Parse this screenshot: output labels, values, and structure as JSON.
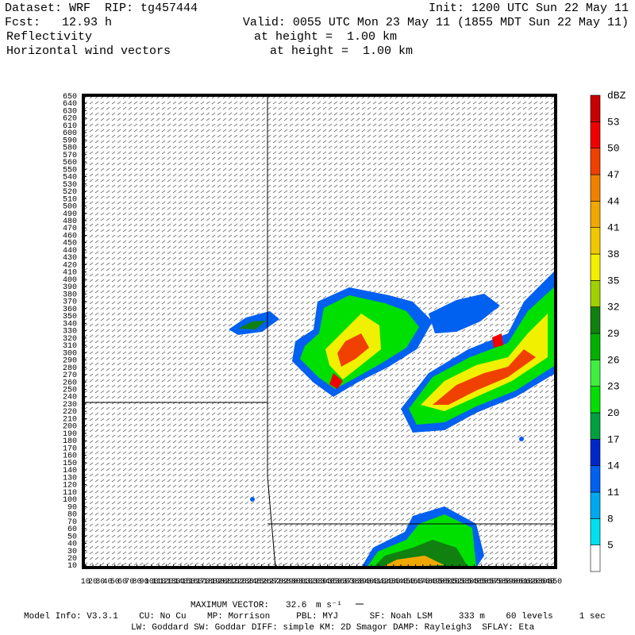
{
  "header": {
    "dataset": "Dataset: WRF  RIP: tg457444",
    "init": "Init: 1200 UTC Sun 22 May 11",
    "fcst": "Fcst:   12.93 h",
    "valid": "Valid: 0055 UTC Mon 23 May 11 (1855 MDT Sun 22 May 11)",
    "field1": "Reflectivity",
    "field1_level": "at height =  1.00 km",
    "field2": "Horizontal wind vectors",
    "field2_level": "at height =  1.00 km"
  },
  "chart_data": {
    "type": "map",
    "xlim": [
      7,
      651
    ],
    "ylim": [
      7,
      651
    ],
    "xticks": [
      10,
      20,
      30,
      40,
      50,
      60,
      70,
      80,
      90,
      100,
      110,
      120,
      130,
      140,
      150,
      160,
      170,
      180,
      190,
      200,
      210,
      220,
      230,
      240,
      250,
      260,
      270,
      280,
      290,
      300,
      310,
      320,
      330,
      340,
      350,
      360,
      370,
      380,
      390,
      400,
      410,
      420,
      430,
      440,
      450,
      460,
      470,
      480,
      490,
      500,
      510,
      520,
      530,
      540,
      550,
      560,
      570,
      580,
      590,
      600,
      610,
      620,
      630,
      640,
      650
    ],
    "yticks": [
      10,
      20,
      30,
      40,
      50,
      60,
      70,
      80,
      90,
      100,
      110,
      120,
      130,
      140,
      150,
      160,
      170,
      180,
      190,
      200,
      210,
      220,
      230,
      240,
      250,
      260,
      270,
      280,
      290,
      300,
      310,
      320,
      330,
      340,
      350,
      360,
      370,
      380,
      390,
      400,
      410,
      420,
      430,
      440,
      450,
      460,
      470,
      480,
      490,
      500,
      510,
      520,
      530,
      540,
      550,
      560,
      570,
      580,
      590,
      600,
      610,
      620,
      630,
      640,
      650
    ],
    "colorbar": {
      "unit": "dBZ",
      "levels": [
        5,
        8,
        11,
        14,
        17,
        20,
        23,
        26,
        29,
        32,
        35,
        38,
        41,
        44,
        47,
        50,
        53
      ],
      "colors": [
        "#ffffff",
        "#00e0f0",
        "#00a8f0",
        "#0060f0",
        "#0028c8",
        "#00a040",
        "#00e000",
        "#40f040",
        "#00b000",
        "#108010",
        "#a0d000",
        "#f0f000",
        "#f0c800",
        "#f0a800",
        "#f08000",
        "#f04000",
        "#f00000",
        "#c80000"
      ]
    }
  },
  "footer": {
    "max_vector_label": "MAXIMUM VECTOR:",
    "max_vector": "32.6",
    "max_vector_unit": "m s⁻¹",
    "model_info": "Model Info: V3.3.1    CU: No Cu    MP: Morrison     PBL: MYJ      SF: Noah LSM     333 m    60 levels     1 sec",
    "model_info2": "LW: Goddard SW: Goddar DIFF: simple KM: 2D Smagor DAMP: Rayleigh3  SFLAY: Eta"
  }
}
